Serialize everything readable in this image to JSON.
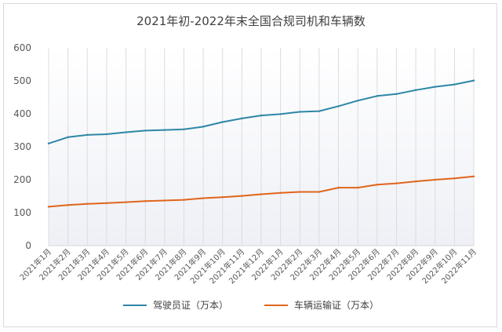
{
  "chart_data": {
    "type": "line",
    "title": "2021年初-2022年末全国合规司机和车辆数",
    "xlabel": "",
    "ylabel": "",
    "ylim": [
      0,
      600
    ],
    "yticks": [
      0,
      100,
      200,
      300,
      400,
      500,
      600
    ],
    "grid": "vertical",
    "legend_position": "bottom",
    "categories": [
      "2021年1月",
      "2021年2月",
      "2021年3月",
      "2021年4月",
      "2021年5月",
      "2021年6月",
      "2021年7月",
      "2021年8月",
      "2021年9月",
      "2021年10月",
      "2021年11月",
      "2021年12月",
      "2022年1月",
      "2022年2月",
      "2022年3月",
      "2022年4月",
      "2022年5月",
      "2022年6月",
      "2022年7月",
      "2022年8月",
      "2022年9月",
      "2022年10月",
      "2022年11月"
    ],
    "series": [
      {
        "name": "驾驶员证（万本）",
        "color": "#2e86a6",
        "values": [
          310,
          329,
          336,
          338,
          344,
          349,
          351,
          353,
          361,
          375,
          386,
          395,
          399,
          406,
          408,
          423,
          440,
          454,
          460,
          472,
          482,
          489,
          501
        ]
      },
      {
        "name": "车辆运输证（万本）",
        "color": "#e0651c",
        "values": [
          118,
          123,
          127,
          129,
          132,
          135,
          137,
          139,
          144,
          147,
          151,
          156,
          160,
          163,
          163,
          176,
          176,
          185,
          189,
          195,
          200,
          204,
          210
        ]
      }
    ]
  }
}
